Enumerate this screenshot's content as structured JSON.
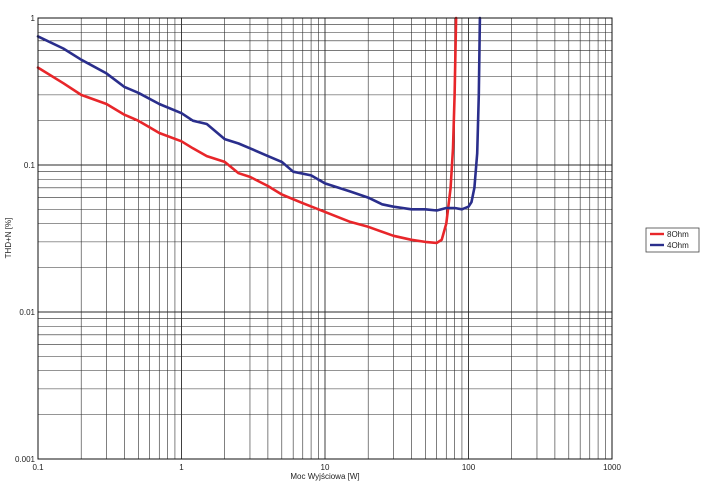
{
  "chart_data": {
    "type": "line",
    "xlabel": "Moc Wyjściowa [W]",
    "ylabel": "THD+N [%]",
    "x_scale": "log",
    "y_scale": "log",
    "xlim": [
      0.1,
      1000
    ],
    "ylim": [
      0.001,
      1
    ],
    "x_ticks": [
      0.1,
      1,
      10,
      100,
      1000
    ],
    "x_tick_labels": [
      "0.1",
      "1",
      "10",
      "100",
      "1000"
    ],
    "y_ticks": [
      0.001,
      0.01,
      0.1,
      1
    ],
    "y_tick_labels": [
      "0.001",
      "0.01",
      "0.1",
      "1"
    ],
    "grid": true,
    "legend_position": "right",
    "series": [
      {
        "name": "8Ohm",
        "color": "#e8262a",
        "points": [
          [
            0.1,
            0.46
          ],
          [
            0.15,
            0.36
          ],
          [
            0.2,
            0.3
          ],
          [
            0.3,
            0.26
          ],
          [
            0.4,
            0.22
          ],
          [
            0.5,
            0.2
          ],
          [
            0.7,
            0.165
          ],
          [
            1.0,
            0.145
          ],
          [
            1.2,
            0.13
          ],
          [
            1.5,
            0.115
          ],
          [
            2.0,
            0.105
          ],
          [
            2.5,
            0.088
          ],
          [
            3.0,
            0.083
          ],
          [
            4.0,
            0.072
          ],
          [
            5.0,
            0.063
          ],
          [
            7.0,
            0.055
          ],
          [
            10.0,
            0.048
          ],
          [
            15.0,
            0.041
          ],
          [
            20.0,
            0.038
          ],
          [
            30.0,
            0.033
          ],
          [
            40.0,
            0.031
          ],
          [
            50.0,
            0.03
          ],
          [
            60.0,
            0.0295
          ],
          [
            65.0,
            0.031
          ],
          [
            70.0,
            0.04
          ],
          [
            75.0,
            0.07
          ],
          [
            78.0,
            0.13
          ],
          [
            80.0,
            0.3
          ],
          [
            82.0,
            1.0
          ]
        ]
      },
      {
        "name": "4Ohm",
        "color": "#2a2e8c",
        "points": [
          [
            0.1,
            0.75
          ],
          [
            0.15,
            0.62
          ],
          [
            0.2,
            0.52
          ],
          [
            0.3,
            0.42
          ],
          [
            0.4,
            0.34
          ],
          [
            0.5,
            0.31
          ],
          [
            0.7,
            0.26
          ],
          [
            1.0,
            0.225
          ],
          [
            1.2,
            0.2
          ],
          [
            1.5,
            0.19
          ],
          [
            2.0,
            0.15
          ],
          [
            2.5,
            0.14
          ],
          [
            3.0,
            0.13
          ],
          [
            4.0,
            0.115
          ],
          [
            5.0,
            0.105
          ],
          [
            6.0,
            0.09
          ],
          [
            8.0,
            0.085
          ],
          [
            10.0,
            0.075
          ],
          [
            15.0,
            0.066
          ],
          [
            20.0,
            0.06
          ],
          [
            25.0,
            0.054
          ],
          [
            30.0,
            0.052
          ],
          [
            40.0,
            0.05
          ],
          [
            50.0,
            0.05
          ],
          [
            60.0,
            0.049
          ],
          [
            70.0,
            0.051
          ],
          [
            80.0,
            0.051
          ],
          [
            90.0,
            0.05
          ],
          [
            100.0,
            0.052
          ],
          [
            105.0,
            0.056
          ],
          [
            110.0,
            0.07
          ],
          [
            115.0,
            0.12
          ],
          [
            118.0,
            0.3
          ],
          [
            120.0,
            1.0
          ]
        ]
      }
    ]
  }
}
